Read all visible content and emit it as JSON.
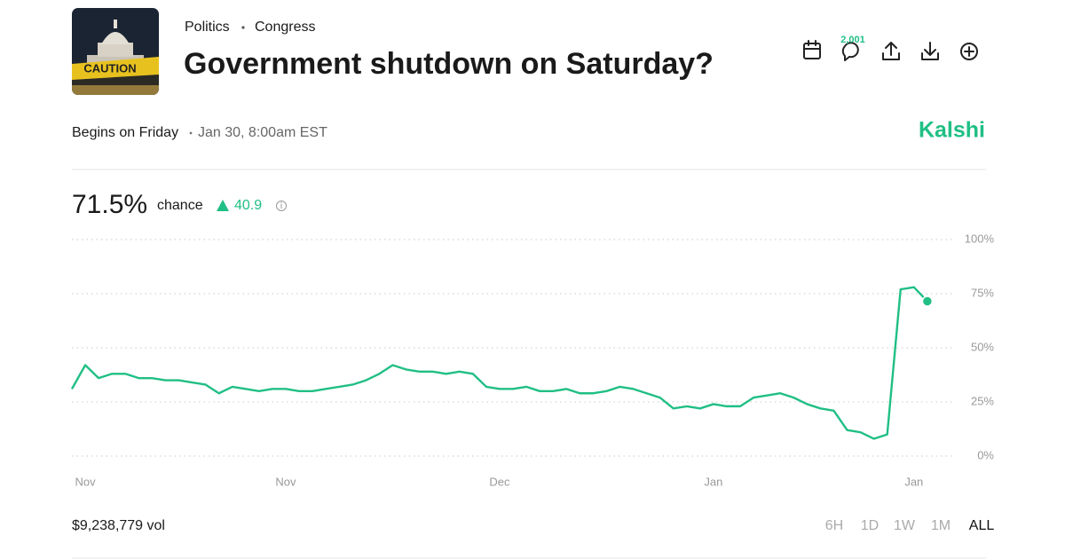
{
  "header": {
    "categories": [
      "Politics",
      "Congress"
    ],
    "title": "Government shutdown on Saturday?",
    "image_text": "CAUTION",
    "comments": "2,001"
  },
  "info": {
    "begins": "Begins on Friday",
    "date": "Jan 30, 8:00am EST",
    "brand": "Kalshi"
  },
  "summary": {
    "chance": "71.5%",
    "chance_label": "chance",
    "change": "40.9"
  },
  "footer": {
    "volume": "$9,238,779 vol",
    "ranges": [
      "6H",
      "1D",
      "1W",
      "1M",
      "ALL"
    ],
    "selected_range": "ALL"
  },
  "chart_data": {
    "type": "line",
    "color": "#20bf85",
    "values": [
      31,
      42,
      36,
      38,
      38,
      36,
      36,
      35,
      35,
      34,
      33,
      29,
      32,
      31,
      30,
      31,
      31,
      30,
      30,
      31,
      32,
      33,
      35,
      38,
      42,
      40,
      39,
      39,
      38,
      39,
      38,
      32,
      31,
      31,
      32,
      30,
      30,
      31,
      29,
      29,
      30,
      32,
      31,
      29,
      27,
      22,
      23,
      22,
      24,
      23,
      23,
      27,
      28,
      29,
      27,
      24,
      22,
      21,
      12,
      11,
      8,
      10,
      77,
      78,
      71.5
    ],
    "xlim": [
      0,
      66
    ],
    "xticks": [
      {
        "value": 1,
        "label": "Nov"
      },
      {
        "value": 16,
        "label": "Nov"
      },
      {
        "value": 32,
        "label": "Dec"
      },
      {
        "value": 48,
        "label": "Jan"
      },
      {
        "value": 63,
        "label": "Jan"
      }
    ],
    "ylim": [
      0,
      100
    ],
    "yticks": [
      {
        "value": 0,
        "label": "0%"
      },
      {
        "value": 25,
        "label": "25%"
      },
      {
        "value": 50,
        "label": "50%"
      },
      {
        "value": 75,
        "label": "75%"
      },
      {
        "value": 100,
        "label": "100%"
      }
    ],
    "grid": true
  }
}
